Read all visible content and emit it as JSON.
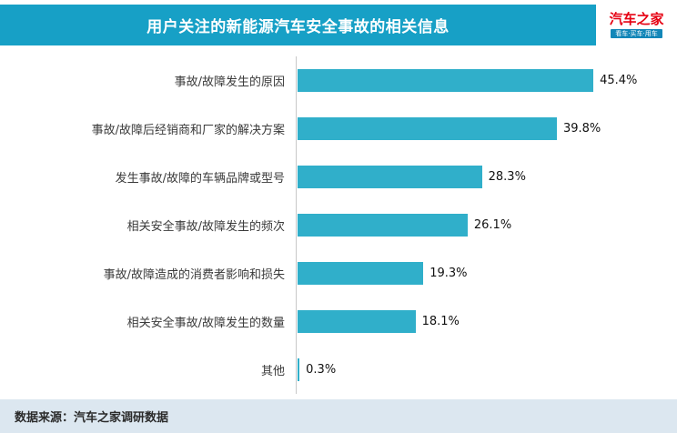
{
  "header": {
    "title": "用户关注的新能源汽车安全事故的相关信息",
    "logo": {
      "brand": "汽车之家",
      "tagline": "看车·买车·用车"
    }
  },
  "chart_data": {
    "type": "bar",
    "orientation": "horizontal",
    "title": "用户关注的新能源汽车安全事故的相关信息",
    "categories": [
      "事故/故障发生的原因",
      "事故/故障后经销商和厂家的解决方案",
      "发生事故/故障的车辆品牌或型号",
      "相关安全事故/故障发生的频次",
      "事故/故障造成的消费者影响和损失",
      "相关安全事故/故障发生的数量",
      "其他"
    ],
    "values": [
      45.4,
      39.8,
      28.3,
      26.1,
      19.3,
      18.1,
      0.3
    ],
    "value_labels": [
      "45.4%",
      "39.8%",
      "28.3%",
      "26.1%",
      "19.3%",
      "18.1%",
      "0.3%"
    ],
    "xlim": [
      0,
      50
    ],
    "grid": false,
    "legend": "none",
    "bar_color": "#30afca"
  },
  "footer": {
    "source_label": "数据来源：",
    "source_value": "汽车之家调研数据"
  },
  "colors": {
    "header_bg": "#17a0c6",
    "bar_fill": "#30afca",
    "footer_bg": "#dce7f0",
    "logo_red": "#e60012",
    "logo_tagline_bg": "#1387b8",
    "axis_line": "#c8c8c8"
  }
}
